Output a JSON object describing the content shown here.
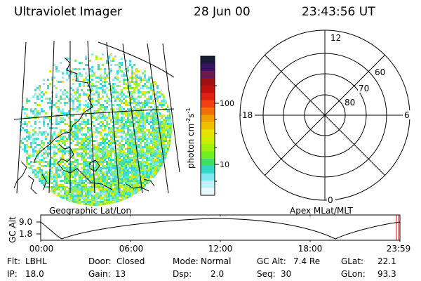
{
  "header": {
    "title": "Ultraviolet Imager",
    "date": "28 Jun 00",
    "time": "23:43:56 UT"
  },
  "panels": {
    "left_label": "Geographic Lat/Lon",
    "right_label": "Apex MLat/MLT"
  },
  "colorbar": {
    "unit": "photon cm",
    "unit_exp1": "-2",
    "unit_s": "s",
    "unit_exp2": "-1",
    "ticks": [
      "100",
      "10"
    ],
    "colors": [
      "#1a1a3a",
      "#3a1060",
      "#6a1a50",
      "#a01010",
      "#c01010",
      "#e02010",
      "#f04010",
      "#f07000",
      "#f0a000",
      "#f0c000",
      "#e8e000",
      "#c8f000",
      "#a0f010",
      "#70f020",
      "#40e060",
      "#30d8c8",
      "#80e8f0",
      "#c0f0f8",
      "#e8f8fc"
    ]
  },
  "polar": {
    "mlt_labels": {
      "top": "12",
      "left": "18",
      "right": "6",
      "bottom": "0"
    },
    "lat_labels": [
      "60",
      "70",
      "80"
    ]
  },
  "timeline": {
    "ylabel": "GC Alt",
    "y_high": "9.0",
    "y_low": "1.8",
    "x_ticks": [
      "00:00",
      "06:00",
      "12:00",
      "18:00",
      "23:59"
    ]
  },
  "info": {
    "flt_label": "Flt:",
    "flt_value": "LBHL",
    "ip_label": "IP:",
    "ip_value": "18.0",
    "door_label": "Door:",
    "door_value": "Closed",
    "gain_label": "Gain:",
    "gain_value": "13",
    "mode_label": "Mode:",
    "mode_value": "Normal",
    "dsp_label": "Dsp:",
    "dsp_value": "2.0",
    "gcalt_label": "GC Alt:",
    "gcalt_value": "7.4 Re",
    "seq_label": "Seq:",
    "seq_value": "30",
    "glat_label": "GLat:",
    "glat_value": "22.1",
    "glon_label": "GLon:",
    "glon_value": "93.3"
  }
}
